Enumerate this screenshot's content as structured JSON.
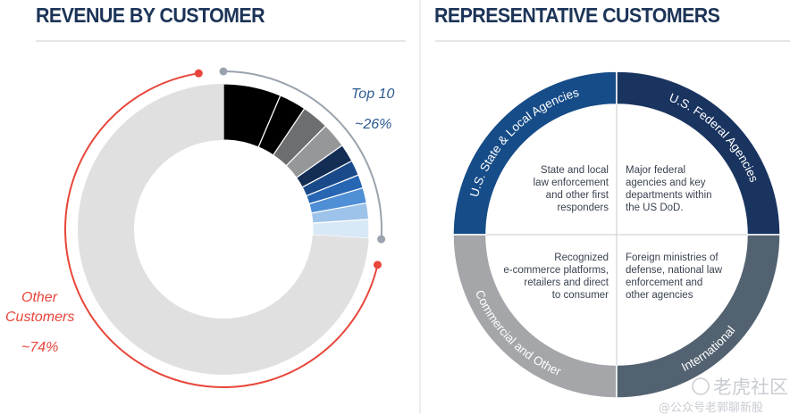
{
  "left": {
    "title": "REVENUE BY CUSTOMER",
    "top10_label": "Top 10",
    "top10_value": "~26%",
    "other_label_line1": "Other",
    "other_label_line2": "Customers",
    "other_value": "~74%"
  },
  "right": {
    "title": "REPRESENTATIVE CUSTOMERS",
    "quadrants": [
      {
        "name": "U.S. State & Local Agencies",
        "color": "#164c88",
        "desc": [
          "State and local",
          "law enforcement",
          "and other first",
          "responders"
        ]
      },
      {
        "name": "U.S. Federal Agencies",
        "color": "#1a3460",
        "desc": [
          "Major federal",
          "agencies and key",
          "departments within",
          "the US DoD."
        ]
      },
      {
        "name": "Commercial and Other",
        "color": "#a4a6a9",
        "desc": [
          "Recognized",
          "e-commerce platforms,",
          "retailers and direct",
          "to consumer"
        ]
      },
      {
        "name": "International",
        "color": "#536270",
        "desc": [
          "Foreign ministries of",
          "defense, national law",
          "enforcement and",
          "other agencies"
        ]
      }
    ]
  },
  "watermark": {
    "line1": "老虎社区",
    "line2": "@公众号老郭聊新股"
  },
  "chart_data": {
    "type": "pie",
    "variant": "donut",
    "slices": [
      {
        "group": "Top 10",
        "value": 6.4,
        "color": "#000000"
      },
      {
        "group": "Top 10",
        "value": 3.0,
        "color": "#000000"
      },
      {
        "group": "Top 10",
        "value": 3.0,
        "color": "#6d6e70"
      },
      {
        "group": "Top 10",
        "value": 2.8,
        "color": "#969799"
      },
      {
        "group": "Top 10",
        "value": 2.0,
        "color": "#132d55"
      },
      {
        "group": "Top 10",
        "value": 1.7,
        "color": "#1b4a8a"
      },
      {
        "group": "Top 10",
        "value": 1.5,
        "color": "#2766b3"
      },
      {
        "group": "Top 10",
        "value": 1.7,
        "color": "#4f8fd6"
      },
      {
        "group": "Top 10",
        "value": 1.8,
        "color": "#9ec3ea"
      },
      {
        "group": "Top 10",
        "value": 2.1,
        "color": "#d9e8f7"
      },
      {
        "group": "Other Customers",
        "value": 74,
        "color": "#e0e0e0"
      }
    ],
    "annotations": [
      {
        "text": "Top 10 ~26%",
        "color": "#9aa3ae"
      },
      {
        "text": "Other Customers ~74%",
        "color": "#e8463a"
      }
    ]
  }
}
